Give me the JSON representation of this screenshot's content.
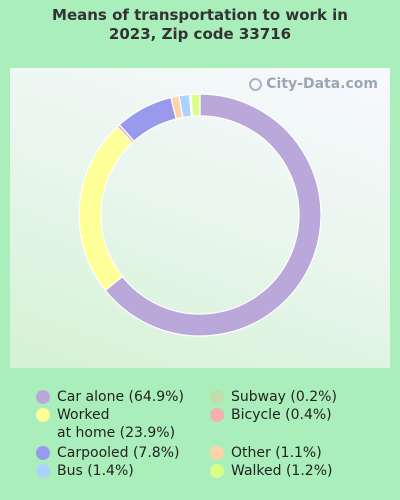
{
  "title_line1": "Means of transportation to work in",
  "title_line2": "2023, Zip code 33716",
  "watermark": "City-Data.com",
  "chart_data": {
    "type": "pie",
    "style": "donut",
    "title": "Means of transportation to work in 2023, Zip code 33716",
    "legend_position": "bottom",
    "slices": [
      {
        "name": "Car alone",
        "label": "Car alone (64.9%)",
        "value": 64.9,
        "color": "#bba8db"
      },
      {
        "name": "Worked at home",
        "label": "Worked\nat home (23.9%)",
        "value": 23.9,
        "color": "#ffff99"
      },
      {
        "name": "Bicycle",
        "label": "Bicycle (0.4%)",
        "value": 0.4,
        "color": "#f2b0b0"
      },
      {
        "name": "Carpooled",
        "label": "Carpooled (7.8%)",
        "value": 7.8,
        "color": "#9999ee"
      },
      {
        "name": "Other",
        "label": "Other (1.1%)",
        "value": 1.1,
        "color": "#ffd2a8"
      },
      {
        "name": "Bus",
        "label": "Bus (1.4%)",
        "value": 1.4,
        "color": "#aad4ff"
      },
      {
        "name": "Subway",
        "label": "Subway (0.2%)",
        "value": 0.2,
        "color": "#c2dcaa"
      },
      {
        "name": "Walked",
        "label": "Walked (1.2%)",
        "value": 1.2,
        "color": "#d8ff88"
      }
    ]
  },
  "legend": [
    {
      "label": "Car alone (64.9%)",
      "color": "#bba8db"
    },
    {
      "label": "Worked\nat home (23.9%)",
      "color": "#ffff99"
    },
    {
      "label": "Carpooled (7.8%)",
      "color": "#9999ee"
    },
    {
      "label": "Bus (1.4%)",
      "color": "#aad4ff"
    },
    {
      "label": "Subway (0.2%)",
      "color": "#c2dcaa"
    },
    {
      "label": "Bicycle (0.4%)",
      "color": "#f2b0b0"
    },
    {
      "label": "Other (1.1%)",
      "color": "#ffd2a8"
    },
    {
      "label": "Walked (1.2%)",
      "color": "#d8ff88"
    }
  ]
}
